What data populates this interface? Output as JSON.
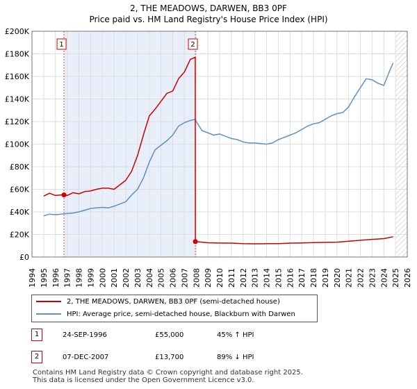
{
  "header": {
    "title_line1": "2, THE MEADOWS, DARWEN, BB3 0PF",
    "title_line2": "Price paid vs. HM Land Registry's House Price Index (HPI)"
  },
  "chart_data": {
    "type": "line",
    "title": "2, THE MEADOWS, DARWEN, BB3 0PF — Price paid vs. HM Land Registry's House Price Index (HPI)",
    "xlabel": "",
    "ylabel": "",
    "xlim": [
      1994,
      2026
    ],
    "ylim": [
      0,
      200000
    ],
    "x_ticks": [
      "1994",
      "1995",
      "1996",
      "1997",
      "1998",
      "1999",
      "2000",
      "2001",
      "2002",
      "2003",
      "2004",
      "2005",
      "2006",
      "2007",
      "2008",
      "2009",
      "2010",
      "2011",
      "2012",
      "2013",
      "2014",
      "2015",
      "2016",
      "2017",
      "2018",
      "2019",
      "2020",
      "2021",
      "2022",
      "2023",
      "2024",
      "2025",
      "2026"
    ],
    "y_ticks": [
      {
        "value": 0,
        "label": "£0"
      },
      {
        "value": 20000,
        "label": "£20K"
      },
      {
        "value": 40000,
        "label": "£40K"
      },
      {
        "value": 60000,
        "label": "£60K"
      },
      {
        "value": 80000,
        "label": "£80K"
      },
      {
        "value": 100000,
        "label": "£100K"
      },
      {
        "value": 120000,
        "label": "£120K"
      },
      {
        "value": 140000,
        "label": "£140K"
      },
      {
        "value": 160000,
        "label": "£160K"
      },
      {
        "value": 180000,
        "label": "£180K"
      },
      {
        "value": 200000,
        "label": "£200K"
      }
    ],
    "grid": true,
    "shaded_period": [
      1996.73,
      2007.93
    ],
    "data_available_until": 2025.0,
    "series": [
      {
        "name": "2, THE MEADOWS, DARWEN, BB3 0PF (semi-detached house)",
        "color": "#cc0000",
        "x": [
          1995.0,
          1995.5,
          1996.0,
          1996.5,
          1996.73,
          1997.0,
          1997.5,
          1998.0,
          1998.5,
          1999.0,
          1999.5,
          2000.0,
          2000.5,
          2001.0,
          2001.5,
          2002.0,
          2002.5,
          2003.0,
          2003.5,
          2004.0,
          2004.5,
          2005.0,
          2005.5,
          2006.0,
          2006.5,
          2007.0,
          2007.5,
          2007.92,
          2007.93,
          2008.0,
          2008.5,
          2009.0,
          2010.0,
          2011.0,
          2012.0,
          2013.0,
          2014.0,
          2015.0,
          2016.0,
          2017.0,
          2018.0,
          2019.0,
          2020.0,
          2021.0,
          2022.0,
          2023.0,
          2024.0,
          2024.8
        ],
        "values": [
          54000,
          56500,
          54500,
          55000,
          55000,
          54500,
          57000,
          56000,
          58000,
          58500,
          60000,
          61000,
          61000,
          60000,
          64000,
          68000,
          76000,
          90000,
          108000,
          125000,
          131000,
          138000,
          145000,
          147000,
          158000,
          164000,
          175000,
          177000,
          13700,
          13600,
          13200,
          12600,
          12400,
          12300,
          11900,
          11700,
          11800,
          11900,
          12300,
          12500,
          12800,
          13000,
          13200,
          14000,
          14800,
          15600,
          16300,
          18000
        ]
      },
      {
        "name": "HPI: Average price, semi-detached house, Blackburn with Darwen",
        "color": "#5b8fc8",
        "x": [
          1995.0,
          1995.5,
          1996.0,
          1996.5,
          1997.0,
          1997.5,
          1998.0,
          1998.5,
          1999.0,
          1999.5,
          2000.0,
          2000.5,
          2001.0,
          2001.5,
          2002.0,
          2002.5,
          2003.0,
          2003.5,
          2004.0,
          2004.5,
          2005.0,
          2005.5,
          2006.0,
          2006.5,
          2007.0,
          2007.5,
          2007.93,
          2008.0,
          2008.5,
          2009.0,
          2009.5,
          2010.0,
          2010.5,
          2011.0,
          2011.5,
          2012.0,
          2012.5,
          2013.0,
          2013.5,
          2014.0,
          2014.5,
          2015.0,
          2015.5,
          2016.0,
          2016.5,
          2017.0,
          2017.5,
          2018.0,
          2018.5,
          2019.0,
          2019.5,
          2020.0,
          2020.5,
          2021.0,
          2021.5,
          2022.0,
          2022.5,
          2023.0,
          2023.5,
          2024.0,
          2024.5,
          2024.8
        ],
        "values": [
          36500,
          38000,
          37500,
          38000,
          38500,
          39000,
          40000,
          41500,
          43000,
          43500,
          44000,
          43500,
          45000,
          47000,
          49000,
          55000,
          60000,
          70000,
          84000,
          95000,
          99000,
          103000,
          108000,
          116000,
          119000,
          121000,
          122000,
          120000,
          112000,
          110000,
          108000,
          109000,
          107000,
          105000,
          104000,
          102000,
          101000,
          101000,
          100500,
          100000,
          101000,
          104000,
          106000,
          108000,
          110000,
          113000,
          116000,
          118000,
          119000,
          122000,
          125000,
          127000,
          128000,
          133000,
          142000,
          150000,
          158000,
          157000,
          154000,
          152000,
          165000,
          172000
        ]
      }
    ],
    "annotations": [
      {
        "label": "1",
        "x": 1996.73,
        "y": 55000
      },
      {
        "label": "2",
        "x": 2007.93,
        "y": 13700
      }
    ]
  },
  "legend": {
    "items": [
      {
        "label": "2, THE MEADOWS, DARWEN, BB3 0PF (semi-detached house)",
        "color": "#cc0000"
      },
      {
        "label": "HPI: Average price, semi-detached house, Blackburn with Darwen",
        "color": "#5b8fc8"
      }
    ]
  },
  "transactions": [
    {
      "num": "1",
      "date": "24-SEP-1996",
      "price": "£55,000",
      "hpi": "45% ↑ HPI"
    },
    {
      "num": "2",
      "date": "07-DEC-2007",
      "price": "£13,700",
      "hpi": "89% ↓ HPI"
    }
  ],
  "footer": {
    "line1": "Contains HM Land Registry data © Crown copyright and database right 2025.",
    "line2": "This data is licensed under the Open Government Licence v3.0."
  }
}
